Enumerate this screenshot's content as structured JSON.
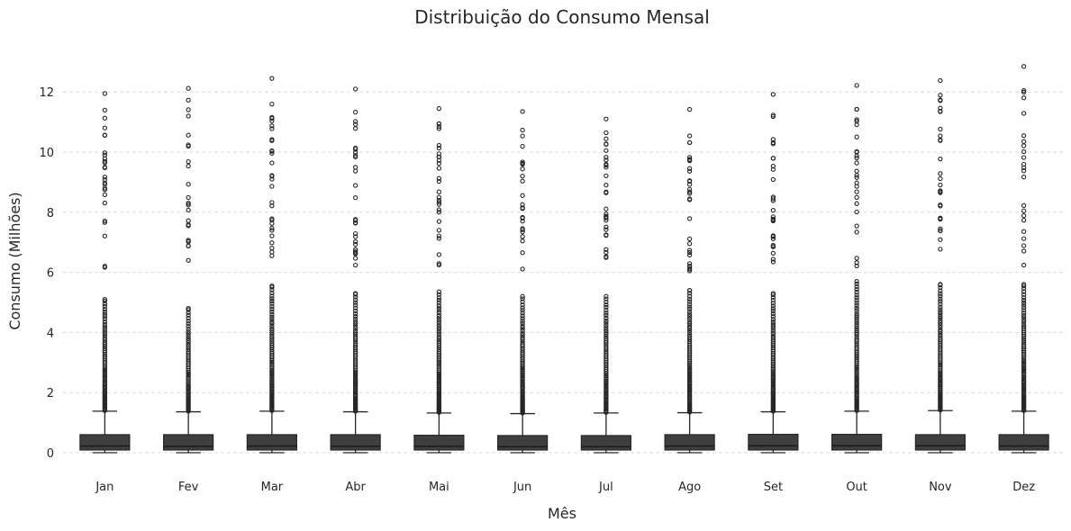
{
  "chart_data": {
    "type": "box",
    "title": "Distribuição do Consumo Mensal",
    "xlabel": "Mês",
    "ylabel": "Consumo (Milhões)",
    "ylim": [
      -0.75,
      13.2
    ],
    "yticks": [
      0,
      2,
      4,
      6,
      8,
      10,
      12
    ],
    "grid": "horizontal-dashed",
    "box_color": "#3f3f3f",
    "line_color": "#262626",
    "categories": [
      "Jan",
      "Fev",
      "Mar",
      "Abr",
      "Mai",
      "Jun",
      "Jul",
      "Ago",
      "Set",
      "Out",
      "Nov",
      "Dez"
    ],
    "boxes": [
      {
        "q1": 0.09,
        "median": 0.22,
        "q3": 0.6,
        "whisker_low": 0.0,
        "whisker_high": 1.38,
        "outlier_top": 5.1,
        "max": 11.95
      },
      {
        "q1": 0.09,
        "median": 0.21,
        "q3": 0.6,
        "whisker_low": 0.0,
        "whisker_high": 1.36,
        "outlier_top": 4.8,
        "max": 12.12
      },
      {
        "q1": 0.09,
        "median": 0.22,
        "q3": 0.6,
        "whisker_low": 0.0,
        "whisker_high": 1.38,
        "outlier_top": 5.55,
        "max": 12.45
      },
      {
        "q1": 0.09,
        "median": 0.21,
        "q3": 0.6,
        "whisker_low": 0.0,
        "whisker_high": 1.36,
        "outlier_top": 5.3,
        "max": 12.1
      },
      {
        "q1": 0.09,
        "median": 0.21,
        "q3": 0.58,
        "whisker_low": 0.0,
        "whisker_high": 1.32,
        "outlier_top": 5.35,
        "max": 11.45
      },
      {
        "q1": 0.09,
        "median": 0.2,
        "q3": 0.57,
        "whisker_low": 0.0,
        "whisker_high": 1.3,
        "outlier_top": 5.2,
        "max": 11.35
      },
      {
        "q1": 0.09,
        "median": 0.2,
        "q3": 0.57,
        "whisker_low": 0.0,
        "whisker_high": 1.32,
        "outlier_top": 5.2,
        "max": 11.1
      },
      {
        "q1": 0.09,
        "median": 0.22,
        "q3": 0.6,
        "whisker_low": 0.0,
        "whisker_high": 1.33,
        "outlier_top": 5.4,
        "max": 11.42
      },
      {
        "q1": 0.09,
        "median": 0.23,
        "q3": 0.61,
        "whisker_low": 0.0,
        "whisker_high": 1.36,
        "outlier_top": 5.3,
        "max": 11.92
      },
      {
        "q1": 0.09,
        "median": 0.23,
        "q3": 0.61,
        "whisker_low": 0.0,
        "whisker_high": 1.38,
        "outlier_top": 5.7,
        "max": 12.22
      },
      {
        "q1": 0.09,
        "median": 0.23,
        "q3": 0.6,
        "whisker_low": 0.0,
        "whisker_high": 1.4,
        "outlier_top": 5.6,
        "max": 12.38
      },
      {
        "q1": 0.09,
        "median": 0.22,
        "q3": 0.6,
        "whisker_low": 0.0,
        "whisker_high": 1.38,
        "outlier_top": 5.6,
        "max": 12.85
      }
    ]
  }
}
